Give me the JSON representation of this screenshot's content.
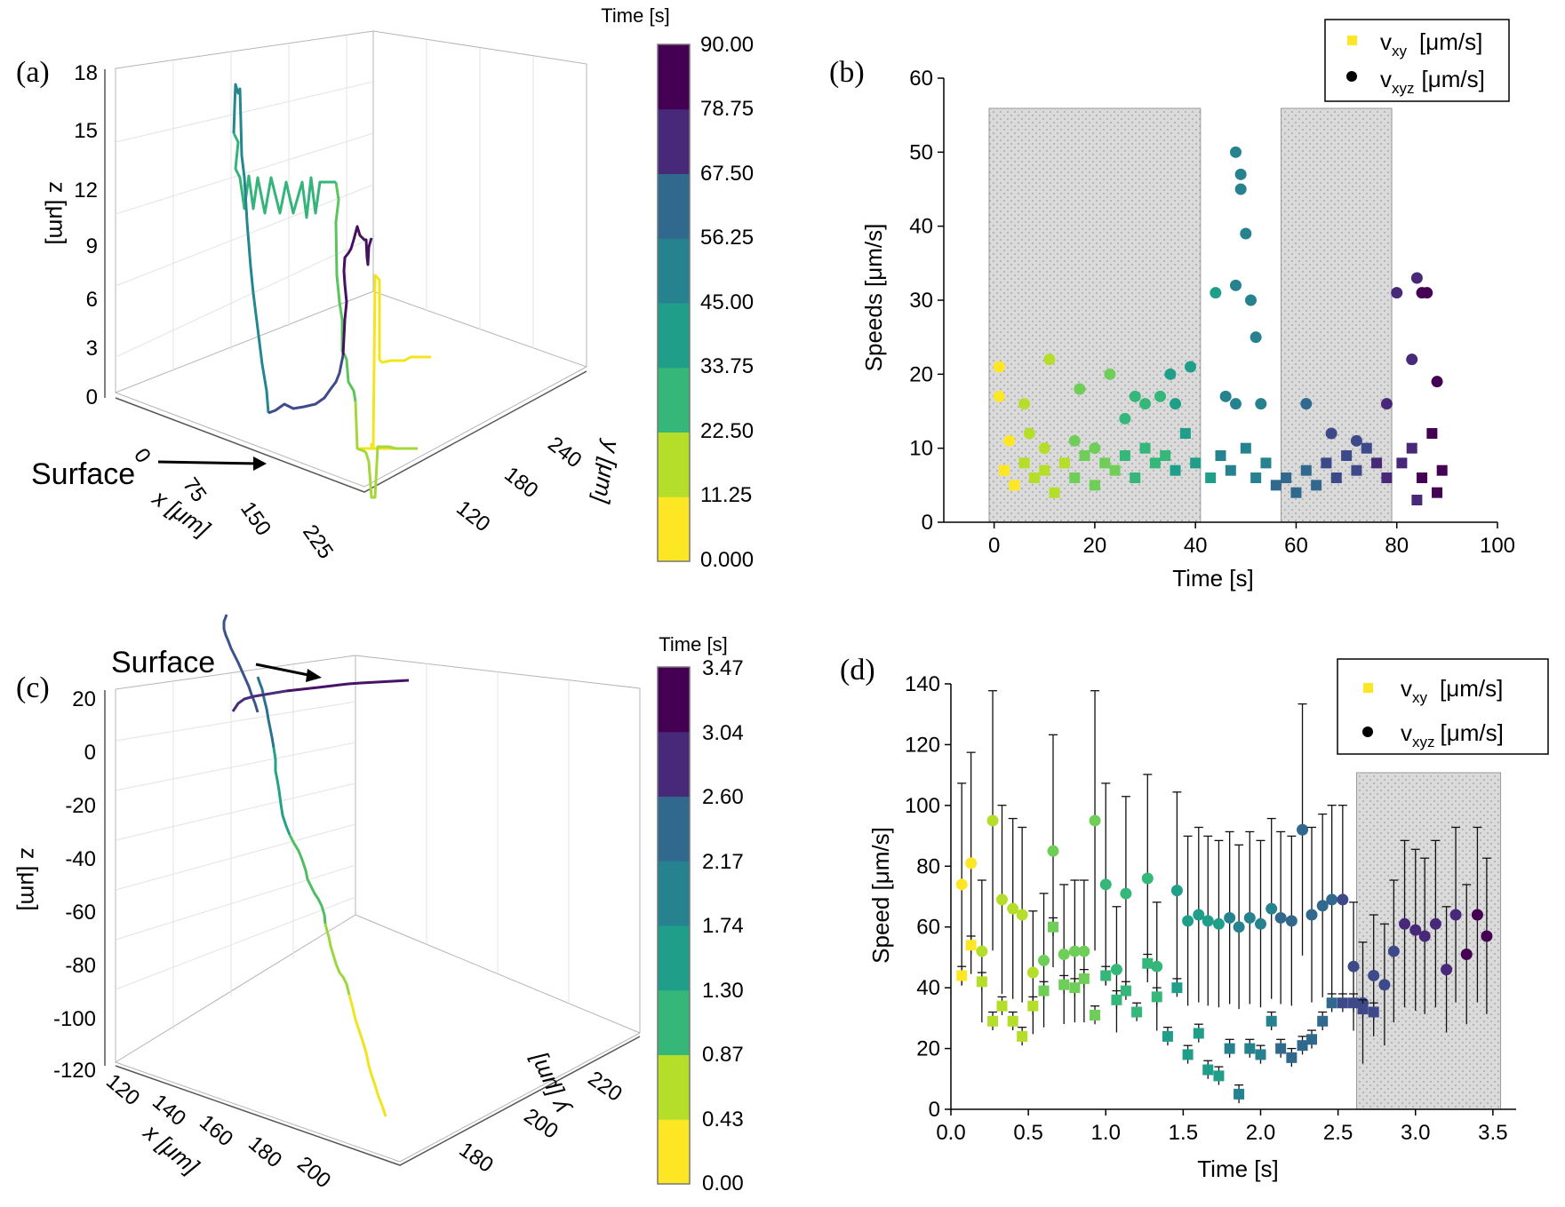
{
  "figure": {
    "colormap": [
      "#fde725",
      "#b5de2b",
      "#6ece58",
      "#35b779",
      "#1f9e89",
      "#26828e",
      "#31688e",
      "#3e4989",
      "#482878",
      "#440154"
    ],
    "shade_color": "#d9d9d9"
  },
  "chart_data": [
    {
      "panel": "(a)",
      "type": "line",
      "title": "",
      "zlabel": "z [μm]",
      "xlabel": "x [μm]",
      "ylabel": "y [μm]",
      "z_ticks": [
        "18",
        "15",
        "12",
        "9",
        "6",
        "3",
        "0"
      ],
      "x_ticks": [
        "0",
        "75",
        "150",
        "225"
      ],
      "y_ticks": [
        "240",
        "180",
        "120"
      ],
      "annotation": "Surface",
      "colorbar": {
        "title": "Time [s]",
        "ticks": [
          "90.00",
          "78.75",
          "67.50",
          "56.25",
          "45.00",
          "33.75",
          "22.50",
          "11.25",
          "0.000"
        ]
      }
    },
    {
      "panel": "(b)",
      "type": "scatter",
      "xlabel": "Time [s]",
      "ylabel": "Speeds [μm/s]",
      "xlim": [
        -10,
        100
      ],
      "ylim": [
        0,
        60
      ],
      "x_ticks": [
        "0",
        "20",
        "40",
        "60",
        "80",
        "100"
      ],
      "y_ticks": [
        "0",
        "10",
        "20",
        "30",
        "40",
        "50",
        "60"
      ],
      "shaded_regions": [
        [
          -1,
          41
        ],
        [
          57,
          79
        ]
      ],
      "legend": {
        "position": "top-right",
        "entries": [
          {
            "base": "v",
            "sub": "xy",
            "unit": "[μm/s]",
            "marker": "square",
            "color": "#fde725"
          },
          {
            "base": "v",
            "sub": "xyz",
            "unit": "[μm/s]",
            "marker": "circle",
            "color": "#000000"
          }
        ]
      },
      "series": [
        {
          "name": "vxyz",
          "points": [
            [
              1,
              21
            ],
            [
              11,
              22
            ],
            [
              1,
              17
            ],
            [
              6,
              16
            ],
            [
              3,
              11
            ],
            [
              7,
              12
            ],
            [
              10,
              10
            ],
            [
              16,
              11
            ],
            [
              17,
              18
            ],
            [
              20,
              10
            ],
            [
              23,
              20
            ],
            [
              26,
              14
            ],
            [
              28,
              17
            ],
            [
              30,
              16
            ],
            [
              33,
              17
            ],
            [
              36,
              16
            ],
            [
              35,
              20
            ],
            [
              39,
              21
            ],
            [
              44,
              31
            ],
            [
              46,
              17
            ],
            [
              48,
              50
            ],
            [
              49,
              47
            ],
            [
              49,
              45
            ],
            [
              48,
              32
            ],
            [
              50,
              39
            ],
            [
              51,
              30
            ],
            [
              52,
              25
            ],
            [
              48,
              16
            ],
            [
              53,
              16
            ],
            [
              62,
              16
            ],
            [
              67,
              12
            ],
            [
              72,
              11
            ],
            [
              78,
              16
            ],
            [
              80,
              31
            ],
            [
              84,
              33
            ],
            [
              85,
              31
            ],
            [
              86,
              31
            ],
            [
              83,
              22
            ],
            [
              88,
              19
            ]
          ]
        },
        {
          "name": "vxy",
          "points": [
            [
              2,
              7
            ],
            [
              4,
              5
            ],
            [
              6,
              8
            ],
            [
              8,
              6
            ],
            [
              10,
              7
            ],
            [
              12,
              4
            ],
            [
              14,
              8
            ],
            [
              16,
              6
            ],
            [
              18,
              9
            ],
            [
              20,
              5
            ],
            [
              22,
              8
            ],
            [
              24,
              7
            ],
            [
              26,
              9
            ],
            [
              28,
              6
            ],
            [
              30,
              10
            ],
            [
              32,
              8
            ],
            [
              34,
              9
            ],
            [
              36,
              7
            ],
            [
              38,
              12
            ],
            [
              40,
              8
            ],
            [
              43,
              6
            ],
            [
              45,
              9
            ],
            [
              47,
              7
            ],
            [
              50,
              10
            ],
            [
              52,
              6
            ],
            [
              54,
              8
            ],
            [
              56,
              5
            ],
            [
              58,
              6
            ],
            [
              60,
              4
            ],
            [
              62,
              7
            ],
            [
              64,
              5
            ],
            [
              66,
              8
            ],
            [
              68,
              6
            ],
            [
              70,
              9
            ],
            [
              72,
              7
            ],
            [
              74,
              10
            ],
            [
              76,
              8
            ],
            [
              78,
              6
            ],
            [
              81,
              8
            ],
            [
              83,
              10
            ],
            [
              85,
              6
            ],
            [
              87,
              12
            ],
            [
              89,
              7
            ],
            [
              84,
              3
            ],
            [
              88,
              4
            ]
          ]
        }
      ]
    },
    {
      "panel": "(c)",
      "type": "line",
      "zlabel": "z [μm]",
      "xlabel": "x [μm]",
      "ylabel": "y [μm]",
      "z_ticks": [
        "20",
        "0",
        "-20",
        "-40",
        "-60",
        "-80",
        "-100",
        "-120"
      ],
      "x_ticks": [
        "120",
        "140",
        "160",
        "180",
        "200"
      ],
      "y_ticks": [
        "220",
        "200",
        "180"
      ],
      "annotation": "Surface",
      "colorbar": {
        "title": "Time [s]",
        "ticks": [
          "3.47",
          "3.04",
          "2.60",
          "2.17",
          "1.74",
          "1.30",
          "0.87",
          "0.43",
          "0.00"
        ]
      }
    },
    {
      "panel": "(d)",
      "type": "scatter",
      "xlabel": "Time [s]",
      "ylabel": "Speed [μm/s]",
      "xlim": [
        0,
        3.65
      ],
      "ylim": [
        0,
        140
      ],
      "x_ticks": [
        "0.0",
        "0.5",
        "1.0",
        "1.5",
        "2.0",
        "2.5",
        "3.0",
        "3.5"
      ],
      "y_ticks": [
        "0",
        "20",
        "40",
        "60",
        "80",
        "100",
        "120",
        "140"
      ],
      "shaded_regions": [
        [
          2.62,
          3.55
        ]
      ],
      "legend": {
        "position": "top-right",
        "entries": [
          {
            "base": "v",
            "sub": "xy",
            "unit": "[μm/s]",
            "marker": "square",
            "color": "#fde725"
          },
          {
            "base": "v",
            "sub": "xyz",
            "unit": "[μm/s]",
            "marker": "circle",
            "color": "#000000"
          }
        ]
      },
      "series": [
        {
          "name": "vxyz",
          "points": [
            [
              0.07,
              74
            ],
            [
              0.13,
              81
            ],
            [
              0.2,
              52
            ],
            [
              0.27,
              95
            ],
            [
              0.33,
              69
            ],
            [
              0.4,
              66
            ],
            [
              0.46,
              64
            ],
            [
              0.53,
              45
            ],
            [
              0.6,
              49
            ],
            [
              0.66,
              85
            ],
            [
              0.73,
              51
            ],
            [
              0.8,
              52
            ],
            [
              0.86,
              52
            ],
            [
              0.93,
              95
            ],
            [
              1.0,
              74
            ],
            [
              1.07,
              46
            ],
            [
              1.13,
              71
            ],
            [
              1.27,
              76
            ],
            [
              1.33,
              47
            ],
            [
              1.46,
              72
            ],
            [
              1.53,
              62
            ],
            [
              1.6,
              64
            ],
            [
              1.66,
              62
            ],
            [
              1.73,
              61
            ],
            [
              1.8,
              63
            ],
            [
              1.86,
              60
            ],
            [
              1.93,
              63
            ],
            [
              2.0,
              61
            ],
            [
              2.07,
              66
            ],
            [
              2.13,
              63
            ],
            [
              2.2,
              62
            ],
            [
              2.27,
              92
            ],
            [
              2.33,
              64
            ],
            [
              2.4,
              67
            ],
            [
              2.46,
              69
            ],
            [
              2.53,
              69
            ],
            [
              2.6,
              47
            ],
            [
              2.66,
              35
            ],
            [
              2.73,
              44
            ],
            [
              2.8,
              41
            ],
            [
              2.86,
              52
            ],
            [
              2.93,
              61
            ],
            [
              3.0,
              59
            ],
            [
              3.06,
              57
            ],
            [
              3.13,
              61
            ],
            [
              3.2,
              46
            ],
            [
              3.26,
              64
            ],
            [
              3.33,
              51
            ],
            [
              3.4,
              64
            ],
            [
              3.46,
              57
            ]
          ]
        },
        {
          "name": "vxy",
          "points": [
            [
              0.07,
              44
            ],
            [
              0.13,
              54
            ],
            [
              0.2,
              42
            ],
            [
              0.27,
              29
            ],
            [
              0.33,
              34
            ],
            [
              0.4,
              29
            ],
            [
              0.46,
              24
            ],
            [
              0.53,
              34
            ],
            [
              0.6,
              39
            ],
            [
              0.66,
              60
            ],
            [
              0.73,
              41
            ],
            [
              0.8,
              40
            ],
            [
              0.86,
              43
            ],
            [
              0.93,
              31
            ],
            [
              1.0,
              44
            ],
            [
              1.07,
              36
            ],
            [
              1.13,
              39
            ],
            [
              1.2,
              32
            ],
            [
              1.27,
              48
            ],
            [
              1.33,
              37
            ],
            [
              1.4,
              24
            ],
            [
              1.46,
              40
            ],
            [
              1.53,
              18
            ],
            [
              1.6,
              25
            ],
            [
              1.66,
              13
            ],
            [
              1.73,
              11
            ],
            [
              1.8,
              20
            ],
            [
              1.86,
              5
            ],
            [
              1.93,
              20
            ],
            [
              2.0,
              18
            ],
            [
              2.07,
              29
            ],
            [
              2.13,
              20
            ],
            [
              2.2,
              17
            ],
            [
              2.27,
              21
            ],
            [
              2.33,
              23
            ],
            [
              2.4,
              29
            ],
            [
              2.46,
              35
            ],
            [
              2.53,
              35
            ],
            [
              2.6,
              35
            ],
            [
              2.66,
              33
            ],
            [
              2.73,
              32
            ]
          ]
        }
      ]
    }
  ]
}
